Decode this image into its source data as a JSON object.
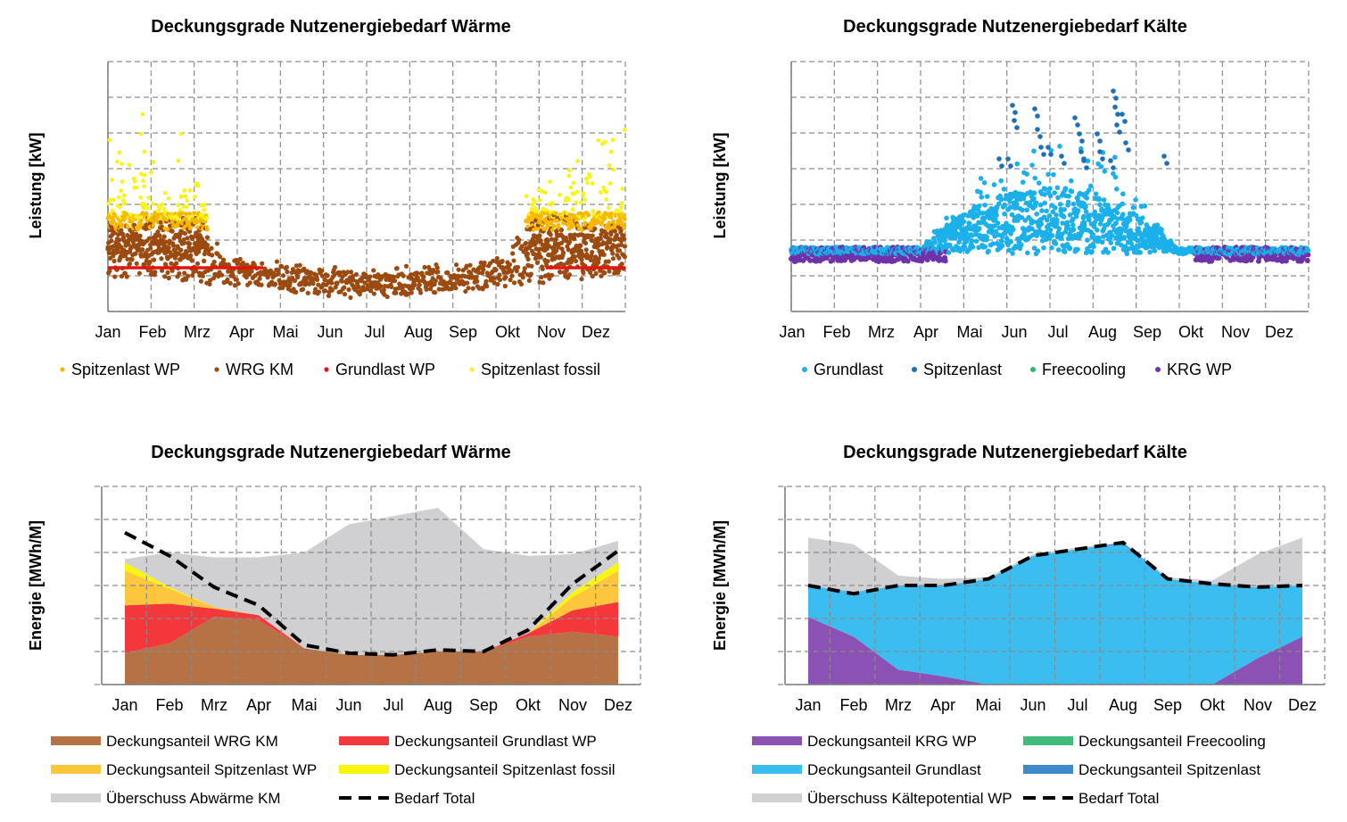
{
  "colors": {
    "wrg_km": "#9b4a10",
    "spitzen_wp": "#f6b800",
    "grund_wp": "#e3130f",
    "spitzen_fossil": "#f8f21f",
    "grundlast_k": "#1bb0ea",
    "spitzenlast_k": "#1d6fb6",
    "freecooling": "#2fb86a",
    "krg_wp": "#6f32a8",
    "area_wrg": "#b47245",
    "area_grund": "#f4373b",
    "area_spitzen_wp": "#fdc63c",
    "area_fossil": "#f8f50e",
    "area_ueberschuss": "#d0cfd2",
    "area_krg": "#8b51b5",
    "area_grundlast": "#3cbdef",
    "area_spitzenlast": "#3f88c9",
    "area_freecooling": "#3fbb7b",
    "bedarf": "#000000"
  },
  "chart_data": [
    {
      "id": "heat-power",
      "type": "scatter",
      "title": "Deckungsgrade Nutzenergiebedarf Wärme",
      "ylabel": "Leistung [kW]",
      "months": [
        "Jan",
        "Feb",
        "Mrz",
        "Apr",
        "Mai",
        "Jun",
        "Jul",
        "Aug",
        "Sep",
        "Okt",
        "Nov",
        "Dez"
      ],
      "grid": true,
      "legend_position": "bottom",
      "series": [
        {
          "name": "Spitzenlast WP",
          "color_key": "spitzen_wp"
        },
        {
          "name": "WRG KM",
          "color_key": "wrg_km"
        },
        {
          "name": "Grundlast WP",
          "color_key": "grund_wp"
        },
        {
          "name": "Spitzenlast fossil",
          "color_key": "spitzen_fossil"
        }
      ]
    },
    {
      "id": "cold-power",
      "type": "scatter",
      "title": "Deckungsgrade Nutzenergiebedarf Kälte",
      "ylabel": "Leistung [kW]",
      "months": [
        "Jan",
        "Feb",
        "Mrz",
        "Apr",
        "Mai",
        "Jun",
        "Jul",
        "Aug",
        "Sep",
        "Okt",
        "Nov",
        "Dez"
      ],
      "grid": true,
      "legend_position": "bottom",
      "series": [
        {
          "name": "Grundlast",
          "color_key": "grundlast_k"
        },
        {
          "name": "Spitzenlast",
          "color_key": "spitzenlast_k"
        },
        {
          "name": "Freecooling",
          "color_key": "freecooling"
        },
        {
          "name": "KRG WP",
          "color_key": "krg_wp"
        }
      ]
    },
    {
      "id": "heat-energy",
      "type": "area",
      "title": "Deckungsgrade Nutzenergiebedarf Wärme",
      "ylabel": "Energie [MWh/M]",
      "categories": [
        "Jan",
        "Feb",
        "Mrz",
        "Apr",
        "Mai",
        "Jun",
        "Jul",
        "Aug",
        "Sep",
        "Okt",
        "Nov",
        "Dez"
      ],
      "grid": true,
      "legend_position": "bottom",
      "stack_series": [
        {
          "name": "Deckungsanteil WRG KM",
          "color_key": "area_wrg",
          "values": [
            0.95,
            1.25,
            2.05,
            1.95,
            1.1,
            0.9,
            0.9,
            1.0,
            1.0,
            1.45,
            1.6,
            1.45
          ]
        },
        {
          "name": "Deckungsanteil Grundlast WP",
          "color_key": "area_grund",
          "values": [
            1.45,
            1.2,
            0.25,
            0.15,
            0,
            0,
            0,
            0,
            0,
            0.1,
            0.65,
            1.05
          ]
        },
        {
          "name": "Deckungsanteil Spitzenlast WP",
          "color_key": "area_spitzen_wp",
          "values": [
            1.05,
            0.45,
            0.05,
            0,
            0,
            0,
            0,
            0,
            0,
            0,
            0.4,
            0.95
          ]
        },
        {
          "name": "Deckungsanteil Spitzenlast fossil",
          "color_key": "area_fossil",
          "values": [
            0.25,
            0.05,
            0,
            0,
            0,
            0,
            0,
            0,
            0,
            0,
            0.15,
            0.25
          ]
        },
        {
          "name": "Überschuss Abwärme KM",
          "color_key": "area_ueberschuss",
          "values": [
            0.1,
            1.05,
            1.5,
            1.75,
            2.9,
            3.95,
            4.2,
            4.35,
            3.1,
            2.35,
            1.15,
            0.65
          ]
        }
      ],
      "line_series": {
        "name": "Bedarf Total",
        "color_key": "bedarf",
        "values": [
          4.6,
          3.9,
          2.95,
          2.4,
          1.2,
          0.95,
          0.9,
          1.05,
          1.0,
          1.65,
          3.05,
          4.05
        ]
      },
      "legend_order": [
        "Deckungsanteil WRG KM",
        "Deckungsanteil Grundlast WP",
        "Deckungsanteil Spitzenlast WP",
        "Deckungsanteil Spitzenlast fossil",
        "Überschuss Abwärme KM",
        "Bedarf Total"
      ],
      "ylim": [
        0,
        6
      ]
    },
    {
      "id": "cold-energy",
      "type": "area",
      "title": "Deckungsgrade Nutzenergiebedarf Kälte",
      "ylabel": "Energie [MWh/M]",
      "categories": [
        "Jan",
        "Feb",
        "Mrz",
        "Apr",
        "Mai",
        "Jun",
        "Jul",
        "Aug",
        "Sep",
        "Okt",
        "Nov",
        "Dez"
      ],
      "grid": true,
      "legend_position": "bottom",
      "stack_series": [
        {
          "name": "Deckungsanteil KRG WP",
          "color_key": "area_krg",
          "values": [
            2.05,
            1.45,
            0.45,
            0.25,
            0,
            0,
            0,
            0,
            0,
            0,
            0.8,
            1.45
          ]
        },
        {
          "name": "Deckungsanteil Freecooling",
          "color_key": "area_freecooling",
          "values": [
            0,
            0,
            0,
            0,
            0,
            0,
            0,
            0,
            0,
            0,
            0,
            0
          ]
        },
        {
          "name": "Deckungsanteil Grundlast",
          "color_key": "area_grundlast",
          "values": [
            0.95,
            1.35,
            2.55,
            2.75,
            3.2,
            3.9,
            4.1,
            4.25,
            3.2,
            3.05,
            2.15,
            1.55
          ]
        },
        {
          "name": "Deckungsanteil Spitzenlast",
          "color_key": "area_spitzenlast",
          "values": [
            0,
            0,
            0,
            0,
            0,
            0,
            0,
            0.05,
            0,
            0,
            0,
            0
          ]
        },
        {
          "name": "Überschuss Kältepotential WP",
          "color_key": "area_ueberschuss",
          "values": [
            1.45,
            1.45,
            0.3,
            0.2,
            0.05,
            0.05,
            0.05,
            0,
            0.05,
            0.1,
            1.0,
            1.45
          ]
        }
      ],
      "line_series": {
        "name": "Bedarf Total",
        "color_key": "bedarf",
        "values": [
          3.0,
          2.75,
          3.0,
          3.0,
          3.2,
          3.9,
          4.1,
          4.3,
          3.2,
          3.05,
          2.95,
          3.0
        ]
      },
      "legend_order": [
        "Deckungsanteil KRG WP",
        "Deckungsanteil Freecooling",
        "Deckungsanteil Grundlast",
        "Deckungsanteil Spitzenlast",
        "Überschuss Kältepotential WP",
        "Bedarf Total"
      ],
      "ylim": [
        0,
        6
      ]
    }
  ]
}
